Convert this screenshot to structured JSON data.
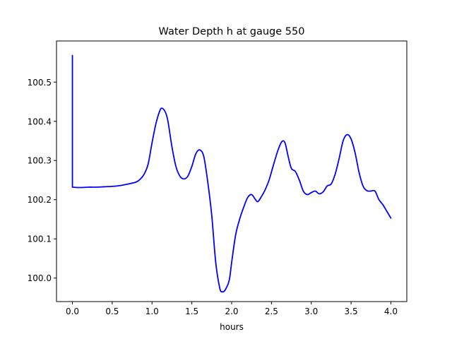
{
  "chart_data": {
    "type": "line",
    "title": "Water Depth h at gauge 550",
    "xlabel": "hours",
    "ylabel": "",
    "xlim": [
      -0.2,
      4.2
    ],
    "ylim": [
      99.94,
      100.605
    ],
    "xticks": [
      0.0,
      0.5,
      1.0,
      1.5,
      2.0,
      2.5,
      3.0,
      3.5,
      4.0
    ],
    "xtick_labels": [
      "0.0",
      "0.5",
      "1.0",
      "1.5",
      "2.0",
      "2.5",
      "3.0",
      "3.5",
      "4.0"
    ],
    "yticks": [
      100.0,
      100.1,
      100.2,
      100.3,
      100.4,
      100.5
    ],
    "ytick_labels": [
      "100.0",
      "100.1",
      "100.2",
      "100.3",
      "100.4",
      "100.5"
    ],
    "grid": false,
    "legend": "none",
    "series": [
      {
        "color": "#0000ff",
        "points": [
          [
            0.0,
            100.568
          ],
          [
            0.0,
            100.232
          ],
          [
            0.1,
            100.231
          ],
          [
            0.2,
            100.232
          ],
          [
            0.3,
            100.232
          ],
          [
            0.4,
            100.233
          ],
          [
            0.5,
            100.234
          ],
          [
            0.6,
            100.236
          ],
          [
            0.7,
            100.24
          ],
          [
            0.8,
            100.245
          ],
          [
            0.85,
            100.252
          ],
          [
            0.9,
            100.265
          ],
          [
            0.95,
            100.29
          ],
          [
            1.0,
            100.345
          ],
          [
            1.05,
            100.395
          ],
          [
            1.1,
            100.428
          ],
          [
            1.13,
            100.433
          ],
          [
            1.17,
            100.422
          ],
          [
            1.2,
            100.4
          ],
          [
            1.25,
            100.335
          ],
          [
            1.3,
            100.285
          ],
          [
            1.35,
            100.26
          ],
          [
            1.4,
            100.253
          ],
          [
            1.45,
            100.26
          ],
          [
            1.5,
            100.285
          ],
          [
            1.55,
            100.317
          ],
          [
            1.6,
            100.327
          ],
          [
            1.65,
            100.31
          ],
          [
            1.7,
            100.245
          ],
          [
            1.75,
            100.16
          ],
          [
            1.8,
            100.04
          ],
          [
            1.85,
            99.975
          ],
          [
            1.88,
            99.965
          ],
          [
            1.92,
            99.97
          ],
          [
            1.97,
            99.995
          ],
          [
            2.0,
            100.04
          ],
          [
            2.05,
            100.11
          ],
          [
            2.1,
            100.15
          ],
          [
            2.15,
            100.18
          ],
          [
            2.2,
            100.205
          ],
          [
            2.25,
            100.213
          ],
          [
            2.3,
            100.2
          ],
          [
            2.33,
            100.195
          ],
          [
            2.38,
            100.21
          ],
          [
            2.42,
            100.225
          ],
          [
            2.47,
            100.25
          ],
          [
            2.52,
            100.285
          ],
          [
            2.58,
            100.325
          ],
          [
            2.63,
            100.348
          ],
          [
            2.67,
            100.345
          ],
          [
            2.71,
            100.31
          ],
          [
            2.75,
            100.28
          ],
          [
            2.8,
            100.272
          ],
          [
            2.85,
            100.25
          ],
          [
            2.9,
            100.222
          ],
          [
            2.95,
            100.213
          ],
          [
            3.0,
            100.218
          ],
          [
            3.05,
            100.222
          ],
          [
            3.1,
            100.215
          ],
          [
            3.15,
            100.22
          ],
          [
            3.2,
            100.235
          ],
          [
            3.25,
            100.24
          ],
          [
            3.3,
            100.265
          ],
          [
            3.35,
            100.305
          ],
          [
            3.4,
            100.35
          ],
          [
            3.45,
            100.366
          ],
          [
            3.5,
            100.355
          ],
          [
            3.55,
            100.32
          ],
          [
            3.6,
            100.27
          ],
          [
            3.65,
            100.235
          ],
          [
            3.7,
            100.223
          ],
          [
            3.75,
            100.222
          ],
          [
            3.8,
            100.222
          ],
          [
            3.85,
            100.2
          ],
          [
            3.9,
            100.187
          ],
          [
            3.95,
            100.17
          ],
          [
            4.0,
            100.153
          ]
        ]
      }
    ]
  }
}
